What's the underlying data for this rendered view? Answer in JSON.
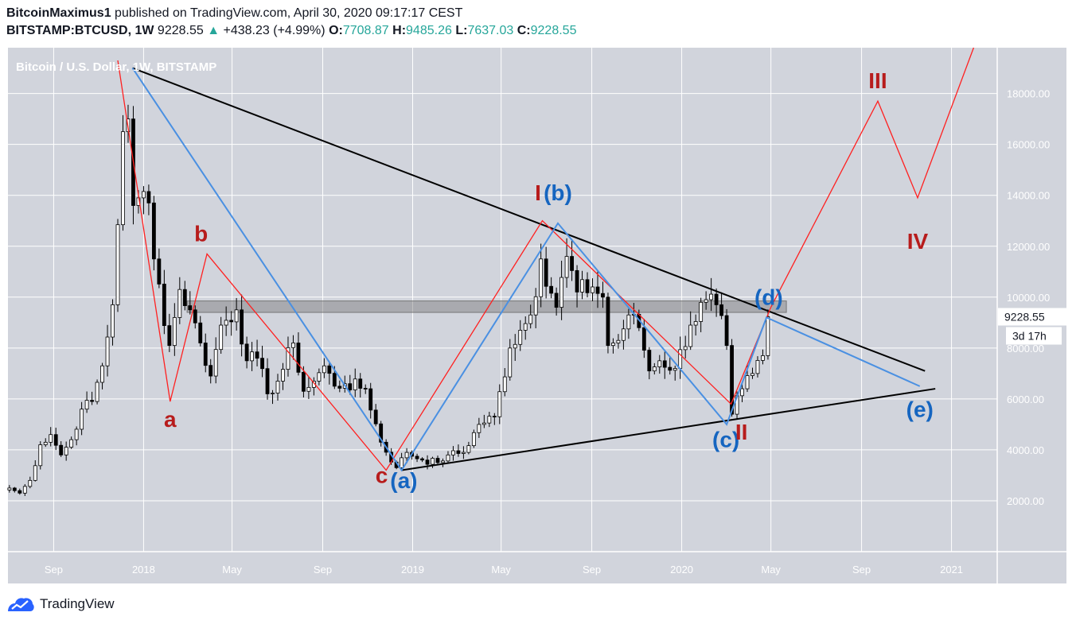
{
  "header": {
    "author": "BitcoinMaximus1",
    "published_text": "published on TradingView.com, April 30, 2020 09:17:17 CEST",
    "symbol": "BITSTAMP:BTCUSD, 1W",
    "last": "9228.55",
    "change_arrow": "▲",
    "change": "+438.23 (+4.99%)",
    "o_label": "O:",
    "o_value": "7708.87",
    "h_label": "H:",
    "h_value": "9485.26",
    "l_label": "L:",
    "l_value": "7637.03",
    "c_label": "C:",
    "c_value": "9228.55"
  },
  "footer": {
    "brand": "TradingView",
    "logo_icon": "tradingview-logo-icon"
  },
  "chart_data": {
    "type": "candlestick",
    "title": "Bitcoin / U.S. Dollar, 1W, BITSTAMP",
    "last_price_label": "9228.55",
    "countdown_label": "3d 17h",
    "y_ticks": [
      2000,
      4000,
      6000,
      8000,
      10000,
      12000,
      14000,
      16000,
      18000
    ],
    "y_tick_labels": [
      "2000.00",
      "4000.00",
      "6000.00",
      "8000.00",
      "10000.00",
      "12000.00",
      "14000.00",
      "16000.00",
      "18000.00"
    ],
    "ylim": [
      0,
      19800
    ],
    "x_range": [
      "2017-07-01",
      "2021-03-04"
    ],
    "x_ticks": [
      {
        "date": "2017-09-01",
        "label": "Sep"
      },
      {
        "date": "2018-01-01",
        "label": "2018"
      },
      {
        "date": "2018-05-01",
        "label": "May"
      },
      {
        "date": "2018-09-01",
        "label": "Sep"
      },
      {
        "date": "2019-01-01",
        "label": "2019"
      },
      {
        "date": "2019-05-01",
        "label": "May"
      },
      {
        "date": "2019-09-01",
        "label": "Sep"
      },
      {
        "date": "2020-01-01",
        "label": "2020"
      },
      {
        "date": "2020-05-01",
        "label": "May"
      },
      {
        "date": "2020-09-01",
        "label": "Sep"
      },
      {
        "date": "2021-01-01",
        "label": "2021"
      }
    ],
    "close_anchors": [
      [
        "2017-07-03",
        2500
      ],
      [
        "2017-07-17",
        2300
      ],
      [
        "2017-07-31",
        2800
      ],
      [
        "2017-08-14",
        4200
      ],
      [
        "2017-08-28",
        4600
      ],
      [
        "2017-09-11",
        3800
      ],
      [
        "2017-09-25",
        4400
      ],
      [
        "2017-10-09",
        5600
      ],
      [
        "2017-10-23",
        5900
      ],
      [
        "2017-11-06",
        7300
      ],
      [
        "2017-11-20",
        9700
      ],
      [
        "2017-12-04",
        16500
      ],
      [
        "2017-12-11",
        17000
      ],
      [
        "2017-12-18",
        13600
      ],
      [
        "2017-12-25",
        13900
      ],
      [
        "2018-01-08",
        13700
      ],
      [
        "2018-01-15",
        11500
      ],
      [
        "2018-02-05",
        8100
      ],
      [
        "2018-02-19",
        10300
      ],
      [
        "2018-03-05",
        9500
      ],
      [
        "2018-03-19",
        8200
      ],
      [
        "2018-04-02",
        6900
      ],
      [
        "2018-04-16",
        8900
      ],
      [
        "2018-05-07",
        9500
      ],
      [
        "2018-05-21",
        7500
      ],
      [
        "2018-06-04",
        7600
      ],
      [
        "2018-06-18",
        6200
      ],
      [
        "2018-07-02",
        6700
      ],
      [
        "2018-07-23",
        8200
      ],
      [
        "2018-08-06",
        6300
      ],
      [
        "2018-08-20",
        6700
      ],
      [
        "2018-09-03",
        7300
      ],
      [
        "2018-09-17",
        6500
      ],
      [
        "2018-10-01",
        6600
      ],
      [
        "2018-10-29",
        6400
      ],
      [
        "2018-11-19",
        4300
      ],
      [
        "2018-12-10",
        3300
      ],
      [
        "2018-12-24",
        3900
      ],
      [
        "2019-01-14",
        3600
      ],
      [
        "2019-02-04",
        3500
      ],
      [
        "2019-02-18",
        3800
      ],
      [
        "2019-03-11",
        3900
      ],
      [
        "2019-04-01",
        5000
      ],
      [
        "2019-04-22",
        5300
      ],
      [
        "2019-05-13",
        8000
      ],
      [
        "2019-05-27",
        8700
      ],
      [
        "2019-06-10",
        9300
      ],
      [
        "2019-06-24",
        11500
      ],
      [
        "2019-07-15",
        9600
      ],
      [
        "2019-07-29",
        11600
      ],
      [
        "2019-08-12",
        10200
      ],
      [
        "2019-09-02",
        10400
      ],
      [
        "2019-09-16",
        10000
      ],
      [
        "2019-09-23",
        8100
      ],
      [
        "2019-10-07",
        8300
      ],
      [
        "2019-10-21",
        9300
      ],
      [
        "2019-11-04",
        8800
      ],
      [
        "2019-11-18",
        7100
      ],
      [
        "2019-12-02",
        7500
      ],
      [
        "2019-12-23",
        7200
      ],
      [
        "2020-01-13",
        8900
      ],
      [
        "2020-02-03",
        9900
      ],
      [
        "2020-02-17",
        9700
      ],
      [
        "2020-03-02",
        8100
      ],
      [
        "2020-03-09",
        5400
      ],
      [
        "2020-03-23",
        6400
      ],
      [
        "2020-04-06",
        7000
      ],
      [
        "2020-04-20",
        7700
      ],
      [
        "2020-04-27",
        9228.55
      ]
    ],
    "resistance_zone": {
      "x": [
        "2018-03-01",
        "2020-05-22"
      ],
      "y": [
        9400,
        9850
      ]
    },
    "trendlines": [
      {
        "color": "#000000",
        "points": [
          [
            "2017-12-17",
            19000
          ],
          [
            "2020-11-26",
            7100
          ]
        ]
      },
      {
        "color": "#000000",
        "points": [
          [
            "2018-12-17",
            3200
          ],
          [
            "2020-12-10",
            6400
          ]
        ]
      }
    ],
    "wave_paths": [
      {
        "color": "#ff2020",
        "points": [
          [
            "2017-11-27",
            19300
          ],
          [
            "2018-02-06",
            5900
          ],
          [
            "2018-03-28",
            11700
          ],
          [
            "2018-11-26",
            3200
          ],
          [
            "2019-06-26",
            13000
          ],
          [
            "2020-03-08",
            5800
          ],
          [
            "2020-05-01",
            9600
          ]
        ]
      },
      {
        "color": "#ff2020",
        "points": [
          [
            "2020-05-01",
            9600
          ],
          [
            "2020-09-23",
            17700
          ],
          [
            "2020-11-16",
            13900
          ],
          [
            "2021-01-31",
            19800
          ]
        ]
      },
      {
        "color": "#4a90e2",
        "points": [
          [
            "2017-12-17",
            19000
          ],
          [
            "2018-12-17",
            3200
          ],
          [
            "2019-07-17",
            12900
          ],
          [
            "2020-03-02",
            5000
          ],
          [
            "2020-04-25",
            9200
          ],
          [
            "2020-11-19",
            6500
          ]
        ]
      }
    ],
    "annotations": [
      {
        "text": "a",
        "x": "2018-02-06",
        "y": 4900,
        "color": "#b71c1c"
      },
      {
        "text": "b",
        "x": "2018-03-20",
        "y": 12200,
        "color": "#b71c1c"
      },
      {
        "text": "c",
        "x": "2018-11-20",
        "y": 2700,
        "color": "#b71c1c"
      },
      {
        "text": "(a)",
        "x": "2018-12-20",
        "y": 2500,
        "color": "#1565c0"
      },
      {
        "text": "I",
        "x": "2019-06-20",
        "y": 13800,
        "color": "#b71c1c"
      },
      {
        "text": "(b)",
        "x": "2019-07-17",
        "y": 13800,
        "color": "#1565c0"
      },
      {
        "text": "(c)",
        "x": "2020-03-01",
        "y": 4100,
        "color": "#1565c0"
      },
      {
        "text": "II",
        "x": "2020-03-22",
        "y": 4400,
        "color": "#b71c1c"
      },
      {
        "text": "(d)",
        "x": "2020-04-28",
        "y": 9700,
        "color": "#1565c0"
      },
      {
        "text": "(e)",
        "x": "2020-11-19",
        "y": 5300,
        "color": "#1565c0"
      },
      {
        "text": "III",
        "x": "2020-09-23",
        "y": 18200,
        "color": "#b71c1c"
      },
      {
        "text": "IV",
        "x": "2020-11-16",
        "y": 11900,
        "color": "#b71c1c"
      }
    ]
  }
}
